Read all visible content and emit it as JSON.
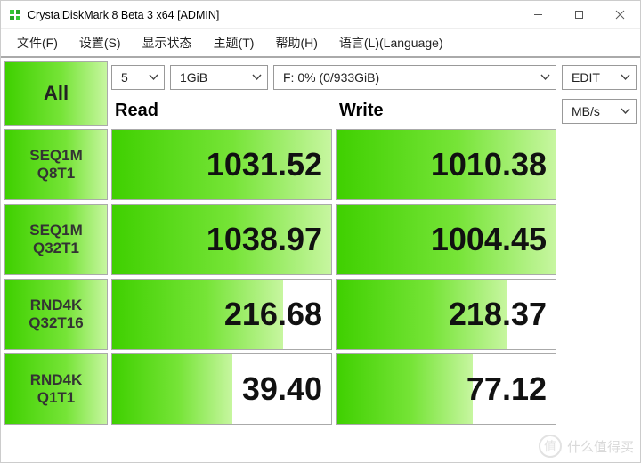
{
  "window": {
    "title": "CrystalDiskMark 8 Beta 3 x64 [ADMIN]"
  },
  "menu": {
    "file": "文件(F)",
    "settings": "设置(S)",
    "viewstate": "显示状态",
    "theme": "主题(T)",
    "help": "帮助(H)",
    "language": "语言(L)(Language)"
  },
  "controls": {
    "all_label": "All",
    "count": "5",
    "size": "1GiB",
    "drive": "F: 0% (0/933GiB)",
    "mode": "EDIT",
    "unit": "MB/s"
  },
  "headers": {
    "read": "Read",
    "write": "Write"
  },
  "rows": [
    {
      "line1": "SEQ1M",
      "line2": "Q8T1",
      "read": "1031.52",
      "write": "1010.38",
      "read_pct": 100,
      "write_pct": 100
    },
    {
      "line1": "SEQ1M",
      "line2": "Q32T1",
      "read": "1038.97",
      "write": "1004.45",
      "read_pct": 100,
      "write_pct": 100
    },
    {
      "line1": "RND4K",
      "line2": "Q32T16",
      "read": "216.68",
      "write": "218.37",
      "read_pct": 78,
      "write_pct": 78
    },
    {
      "line1": "RND4K",
      "line2": "Q1T1",
      "read": "39.40",
      "write": "77.12",
      "read_pct": 55,
      "write_pct": 62
    }
  ],
  "colors": {
    "green_start": "#3fd000",
    "green_mid": "#76e437",
    "green_end": "#c7f6a0",
    "border": "#aaaaaa",
    "text_dark": "#111111",
    "bg": "#ffffff"
  },
  "watermark": {
    "text": "什么值得买",
    "icon_text": "值"
  }
}
